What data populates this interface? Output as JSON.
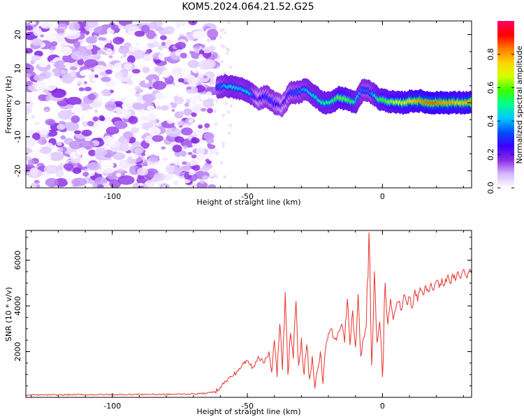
{
  "title": "KOM5.2024.064.21.52.G25",
  "chart_data": [
    {
      "type": "heatmap",
      "xlabel": "Height of straight line (km)",
      "ylabel": "Frequency (Hz)",
      "xlim": [
        -132,
        33
      ],
      "ylim": [
        -25,
        24
      ],
      "xticks": [
        -100,
        -50,
        0
      ],
      "yticks": [
        -20,
        -10,
        0,
        10,
        20
      ],
      "colorbar": {
        "label": "Normalized spectral amplitude",
        "range": [
          0.0,
          1.0
        ],
        "ticks": [
          0.0,
          0.2,
          0.4,
          0.6,
          0.8
        ],
        "colors": [
          "#ffffff",
          "#d6b8ff",
          "#8a2be2",
          "#3a00ff",
          "#0050ff",
          "#00c8ff",
          "#00ff90",
          "#3cff00",
          "#d4ff00",
          "#ffd400",
          "#ff7a00",
          "#ff0000",
          "#ff0066"
        ]
      },
      "noise_region_x": [
        -132,
        -62
      ],
      "ridge": {
        "x": [
          -61,
          -58,
          -55,
          -52,
          -49,
          -46,
          -43,
          -40,
          -37,
          -34,
          -31,
          -28,
          -25,
          -22,
          -19,
          -16,
          -13,
          -10,
          -7,
          -4,
          -1,
          2,
          5,
          8,
          11,
          14,
          17,
          20,
          23,
          26,
          29,
          33
        ],
        "freq": [
          4.5,
          5,
          4.5,
          4,
          3,
          1,
          2,
          0,
          -1,
          3,
          3,
          4,
          2,
          0,
          0,
          1.5,
          1,
          0,
          4,
          3,
          1,
          0.5,
          0,
          0,
          0.5,
          0.5,
          0,
          0,
          0,
          0,
          0,
          0
        ],
        "amplitude": [
          0.3,
          0.4,
          0.45,
          0.4,
          0.45,
          0.2,
          0.3,
          0.3,
          0.2,
          0.3,
          0.35,
          0.4,
          0.45,
          0.5,
          0.5,
          0.6,
          0.6,
          0.5,
          0.35,
          0.35,
          0.55,
          0.6,
          0.65,
          0.7,
          0.75,
          0.8,
          0.85,
          0.85,
          0.8,
          0.8,
          0.75,
          0.8
        ]
      }
    },
    {
      "type": "line",
      "xlabel": "Height of straight line (km)",
      "ylabel": "SNR (10 * v/v)",
      "xlim": [
        -132,
        33
      ],
      "ylim": [
        0,
        7300
      ],
      "xticks": [
        -100,
        -50,
        0
      ],
      "yticks": [
        2000,
        4000,
        6000
      ],
      "color": "#e8312c",
      "points": [
        [
          -132,
          100
        ],
        [
          -120,
          110
        ],
        [
          -110,
          120
        ],
        [
          -100,
          120
        ],
        [
          -90,
          130
        ],
        [
          -80,
          130
        ],
        [
          -70,
          150
        ],
        [
          -65,
          180
        ],
        [
          -62,
          250
        ],
        [
          -60,
          450
        ],
        [
          -58,
          700
        ],
        [
          -56,
          900
        ],
        [
          -54,
          1100
        ],
        [
          -52,
          1400
        ],
        [
          -50,
          1600
        ],
        [
          -48,
          1300
        ],
        [
          -46,
          1800
        ],
        [
          -44,
          1500
        ],
        [
          -42,
          2000
        ],
        [
          -41,
          1100
        ],
        [
          -40,
          2500
        ],
        [
          -39,
          900
        ],
        [
          -38,
          3200
        ],
        [
          -37,
          1200
        ],
        [
          -36,
          4600
        ],
        [
          -35,
          1000
        ],
        [
          -34,
          2800
        ],
        [
          -33,
          1700
        ],
        [
          -32,
          4200
        ],
        [
          -31,
          1400
        ],
        [
          -30,
          2600
        ],
        [
          -29,
          1000
        ],
        [
          -28,
          2300
        ],
        [
          -27,
          800
        ],
        [
          -26,
          1800
        ],
        [
          -25,
          400
        ],
        [
          -24,
          1200
        ],
        [
          -23,
          2000
        ],
        [
          -22,
          600
        ],
        [
          -21,
          2200
        ],
        [
          -20,
          2800
        ],
        [
          -19,
          3000
        ],
        [
          -18,
          2600
        ],
        [
          -17,
          2500
        ],
        [
          -16,
          2900
        ],
        [
          -15,
          3200
        ],
        [
          -14,
          2400
        ],
        [
          -13,
          4300
        ],
        [
          -12,
          2300
        ],
        [
          -11,
          3800
        ],
        [
          -10,
          2200
        ],
        [
          -9,
          4500
        ],
        [
          -8,
          1800
        ],
        [
          -7,
          2600
        ],
        [
          -6,
          3100
        ],
        [
          -5,
          7200
        ],
        [
          -4,
          1400
        ],
        [
          -3,
          5500
        ],
        [
          -2,
          2400
        ],
        [
          -1,
          3300
        ],
        [
          0,
          900
        ],
        [
          1,
          5000
        ],
        [
          2,
          3200
        ],
        [
          3,
          4300
        ],
        [
          4,
          3400
        ],
        [
          5,
          3900
        ],
        [
          6,
          4200
        ],
        [
          7,
          3800
        ],
        [
          8,
          4500
        ],
        [
          9,
          4100
        ],
        [
          10,
          4400
        ],
        [
          11,
          3900
        ],
        [
          12,
          4700
        ],
        [
          13,
          4200
        ],
        [
          14,
          4800
        ],
        [
          15,
          4500
        ],
        [
          16,
          4900
        ],
        [
          17,
          4600
        ],
        [
          18,
          5000
        ],
        [
          19,
          4700
        ],
        [
          20,
          5100
        ],
        [
          21,
          4800
        ],
        [
          22,
          5200
        ],
        [
          23,
          4900
        ],
        [
          24,
          5300
        ],
        [
          25,
          5000
        ],
        [
          26,
          5400
        ],
        [
          27,
          5100
        ],
        [
          28,
          5500
        ],
        [
          29,
          5200
        ],
        [
          30,
          5600
        ],
        [
          31,
          5300
        ],
        [
          32,
          5500
        ],
        [
          33,
          5400
        ]
      ]
    }
  ]
}
